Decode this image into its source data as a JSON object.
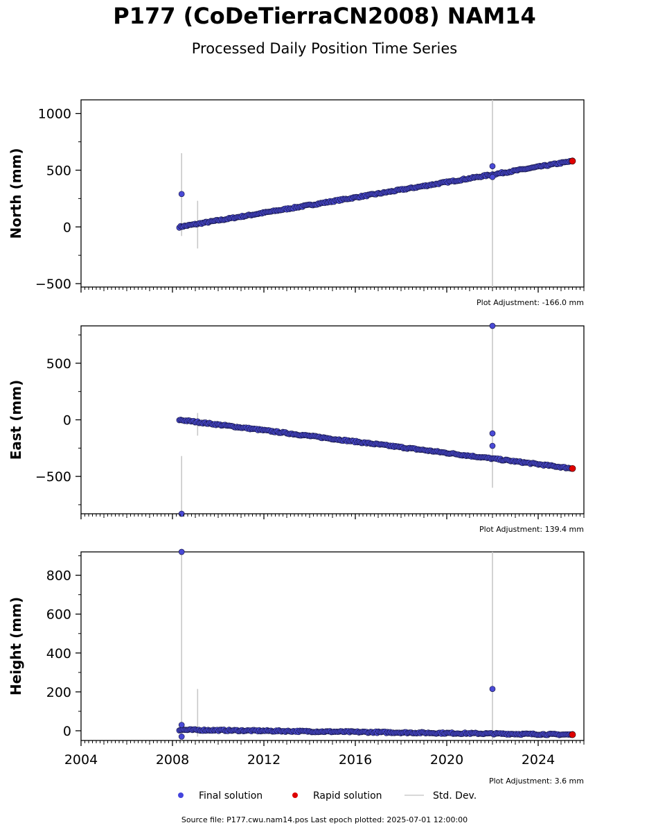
{
  "chart_data": {
    "type": "scatter",
    "title": "P177 (CoDeTierraCN2008) NAM14",
    "subtitle": "Processed Daily Position Time Series",
    "x_ticks": [
      "2004",
      "2008",
      "2012",
      "2016",
      "2020",
      "2024"
    ],
    "xlim": [
      2004,
      2026
    ],
    "legend": {
      "placement": "bottom",
      "entries": [
        {
          "label": "Final solution",
          "color": "#4444dd",
          "kind": "marker"
        },
        {
          "label": "Rapid solution",
          "color": "#dd0000",
          "kind": "marker"
        },
        {
          "label": "Std. Dev.",
          "color": "#cccccc",
          "kind": "line"
        }
      ]
    },
    "source_note": "Source file: P177.cwu.nam14.pos  Last epoch plotted: 2025-07-01 12:00:00",
    "panels": [
      {
        "ylabel": "North (mm)",
        "ylim": [
          -530,
          1120
        ],
        "y_ticks": [
          -500,
          0,
          500,
          1000
        ],
        "y_tick_labels": [
          "−500",
          "0",
          "500",
          "1000"
        ],
        "adjustment": "Plot Adjustment: -166.0 mm",
        "trend": {
          "x0": 2008.3,
          "y0": 0,
          "x1": 2025.5,
          "y1": 580
        },
        "rapid": {
          "x": 2025.5,
          "y": 580
        },
        "outliers": [
          {
            "x": 2008.4,
            "y": 290
          },
          {
            "x": 2022.0,
            "y": 535
          },
          {
            "x": 2022.0,
            "y": 440
          }
        ],
        "errorbars": [
          {
            "x": 2008.4,
            "ylo": -80,
            "yhi": 650
          },
          {
            "x": 2009.1,
            "ylo": -190,
            "yhi": 230
          },
          {
            "x": 2022.0,
            "ylo": -530,
            "yhi": 1120
          }
        ]
      },
      {
        "ylabel": "East (mm)",
        "ylim": [
          -830,
          830
        ],
        "y_ticks": [
          -500,
          0,
          500
        ],
        "y_tick_labels": [
          "−500",
          "0",
          "500"
        ],
        "adjustment": "Plot Adjustment: 139.4 mm",
        "trend": {
          "x0": 2008.3,
          "y0": 0,
          "x1": 2025.5,
          "y1": -430
        },
        "rapid": {
          "x": 2025.5,
          "y": -430
        },
        "outliers": [
          {
            "x": 2008.4,
            "y": -830
          },
          {
            "x": 2022.0,
            "y": 830
          },
          {
            "x": 2022.0,
            "y": -120
          },
          {
            "x": 2022.0,
            "y": -230
          }
        ],
        "errorbars": [
          {
            "x": 2008.4,
            "ylo": -830,
            "yhi": -320
          },
          {
            "x": 2009.1,
            "ylo": -140,
            "yhi": 60
          },
          {
            "x": 2022.0,
            "ylo": -600,
            "yhi": 830
          }
        ]
      },
      {
        "ylabel": "Height (mm)",
        "ylim": [
          -50,
          920
        ],
        "y_ticks": [
          0,
          200,
          400,
          600,
          800
        ],
        "y_tick_labels": [
          "0",
          "200",
          "400",
          "600",
          "800"
        ],
        "adjustment": "Plot Adjustment: 3.6 mm",
        "trend": {
          "x0": 2008.3,
          "y0": 5,
          "x1": 2025.5,
          "y1": -20
        },
        "rapid": {
          "x": 2025.5,
          "y": -20
        },
        "outliers": [
          {
            "x": 2008.4,
            "y": 920
          },
          {
            "x": 2008.4,
            "y": 30
          },
          {
            "x": 2008.4,
            "y": -30
          },
          {
            "x": 2022.0,
            "y": 215
          }
        ],
        "errorbars": [
          {
            "x": 2008.4,
            "ylo": -50,
            "yhi": 920
          },
          {
            "x": 2009.1,
            "ylo": -30,
            "yhi": 215
          },
          {
            "x": 2022.0,
            "ylo": -50,
            "yhi": 920
          }
        ]
      }
    ]
  }
}
